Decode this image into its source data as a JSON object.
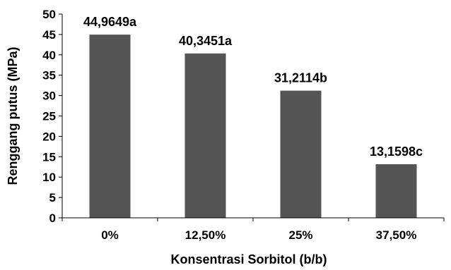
{
  "chart_data": {
    "type": "bar",
    "categories": [
      "0%",
      "12,50%",
      "25%",
      "37,50%"
    ],
    "values": [
      44.9649,
      40.3451,
      31.2114,
      13.1598
    ],
    "data_labels": [
      "44,9649a",
      "40,3451a",
      "31,2114b",
      "13,1598c"
    ],
    "title": "",
    "xlabel": "Konsentrasi  Sorbitol (b/b)",
    "ylabel": "Renggang putus (MPa)",
    "ylim": [
      0,
      50
    ],
    "yticks": [
      0,
      5,
      10,
      15,
      20,
      25,
      30,
      35,
      40,
      45,
      50
    ],
    "ytick_labels": [
      "0",
      "5",
      "10",
      "15",
      "20",
      "25",
      "30",
      "35",
      "40",
      "45",
      "50"
    ],
    "grid": false,
    "legend": "none",
    "bar_color": "#555555"
  }
}
